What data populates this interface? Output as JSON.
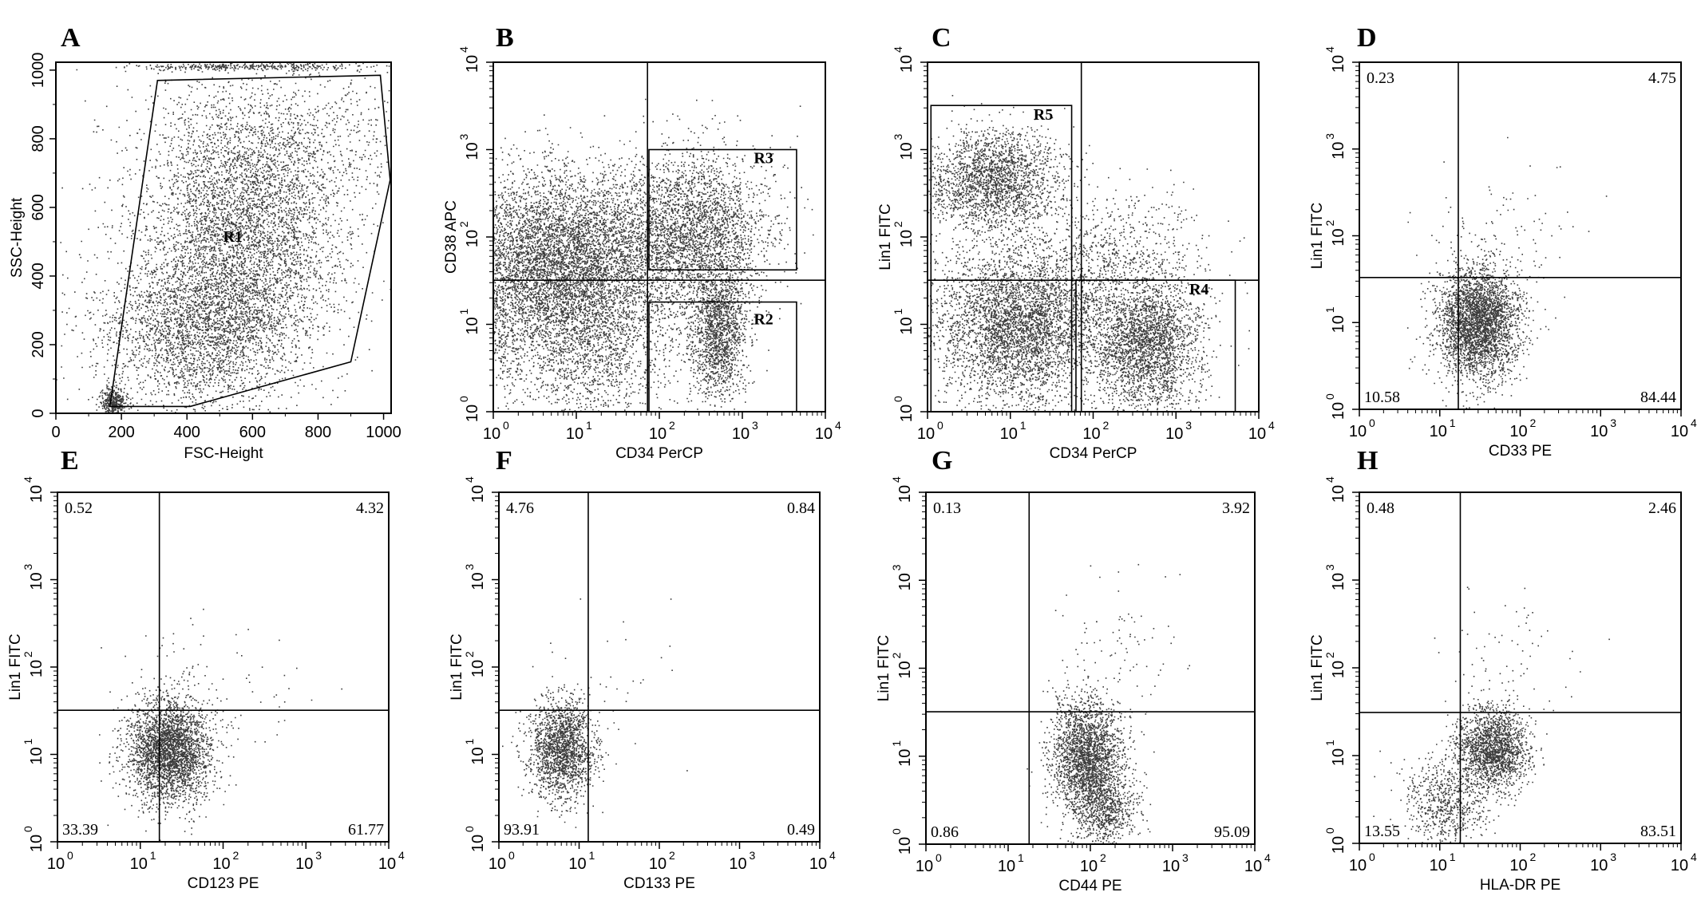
{
  "chart_data": [
    {
      "panel": "A",
      "type": "scatter",
      "xlabel": "FSC-Height",
      "ylabel": "SSC-Height",
      "xscale": "linear",
      "yscale": "linear",
      "xlim": [
        0,
        1023
      ],
      "ylim": [
        0,
        1023
      ],
      "xticks": [
        "0",
        "200",
        "400",
        "600",
        "800",
        "1000"
      ],
      "yticks": [
        "0",
        "200",
        "400",
        "600",
        "800",
        "1000"
      ],
      "gates": [
        {
          "name": "R1",
          "shape": "polygon",
          "points": [
            [
              165,
              20
            ],
            [
              310,
              970
            ],
            [
              990,
              985
            ],
            [
              1020,
              680
            ],
            [
              900,
              150
            ],
            [
              410,
              20
            ]
          ],
          "label_at": [
            540,
            500
          ]
        }
      ],
      "clusters": [
        {
          "cx": 560,
          "cy": 480,
          "sx": 150,
          "sy": 180,
          "n": 4200
        },
        {
          "cx": 420,
          "cy": 230,
          "sx": 150,
          "sy": 110,
          "n": 2200
        },
        {
          "cx": 640,
          "cy": 760,
          "sx": 200,
          "sy": 140,
          "n": 1400
        },
        {
          "cx": 175,
          "cy": 35,
          "sx": 18,
          "sy": 22,
          "n": 400
        },
        {
          "cx": 600,
          "cy": 1012,
          "sx": 200,
          "sy": 5,
          "n": 350
        }
      ]
    },
    {
      "panel": "B",
      "type": "scatter",
      "xlabel": "CD34 PerCP",
      "ylabel": "CD38 APC",
      "xscale": "log",
      "yscale": "log",
      "xlim": [
        1,
        10000
      ],
      "ylim": [
        1,
        10000
      ],
      "quadrant": [
        72,
        32
      ],
      "gates": [
        {
          "name": "R3",
          "shape": "rect",
          "x0": 75,
          "x1": 4500,
          "y0": 42,
          "y1": 1000,
          "label_at": [
            1800,
            700
          ]
        },
        {
          "name": "R2",
          "shape": "rect",
          "x0": 75,
          "x1": 4500,
          "y0": 1.0,
          "y1": 18,
          "label_at": [
            1800,
            10
          ]
        }
      ],
      "clusters": [
        {
          "cx": 8,
          "cy": 60,
          "sx": 0.7,
          "sy": 0.5,
          "n": 5500
        },
        {
          "cx": 2.5,
          "cy": 15,
          "sx": 0.6,
          "sy": 0.6,
          "n": 1800
        },
        {
          "cx": 20,
          "cy": 5,
          "sx": 0.4,
          "sy": 0.5,
          "n": 1000
        },
        {
          "cx": 280,
          "cy": 120,
          "sx": 0.45,
          "sy": 0.45,
          "n": 2600
        },
        {
          "cx": 500,
          "cy": 8,
          "sx": 0.18,
          "sy": 0.4,
          "n": 1600
        }
      ]
    },
    {
      "panel": "C",
      "type": "scatter",
      "xlabel": "CD34 PerCP",
      "ylabel": "Lin1 FITC",
      "xscale": "log",
      "yscale": "log",
      "xlim": [
        1,
        10000
      ],
      "ylim": [
        1,
        10000
      ],
      "quadrant": [
        72,
        32
      ],
      "gates": [
        {
          "name": "R5",
          "shape": "rect",
          "x0": 1.1,
          "x1": 55,
          "y0": 1.0,
          "y1": 3200,
          "label_at": [
            25,
            2200
          ]
        },
        {
          "name": "R4",
          "shape": "rect",
          "x0": 62,
          "x1": 5200,
          "y0": 1.0,
          "y1": 32,
          "label_at": [
            1900,
            22
          ]
        }
      ],
      "clusters": [
        {
          "cx": 6,
          "cy": 450,
          "sx": 0.4,
          "sy": 0.3,
          "n": 2200
        },
        {
          "cx": 12,
          "cy": 10,
          "sx": 0.5,
          "sy": 0.45,
          "n": 4200
        },
        {
          "cx": 450,
          "cy": 6,
          "sx": 0.32,
          "sy": 0.38,
          "n": 2600
        },
        {
          "cx": 200,
          "cy": 60,
          "sx": 0.5,
          "sy": 0.35,
          "n": 700
        }
      ]
    },
    {
      "panel": "D",
      "type": "scatter",
      "xlabel": "CD33 PE",
      "ylabel": "Lin1 FITC",
      "xscale": "log",
      "yscale": "log",
      "xlim": [
        1,
        10000
      ],
      "ylim": [
        1,
        10000
      ],
      "quadrant": [
        17,
        33
      ],
      "quadrant_values": {
        "ul": "0.23",
        "ur": "4.75",
        "ll": "10.58",
        "lr": "84.44"
      },
      "clusters": [
        {
          "cx": 30,
          "cy": 10,
          "sx": 0.25,
          "sy": 0.32,
          "n": 3200
        },
        {
          "cx": 60,
          "cy": 80,
          "sx": 0.45,
          "sy": 0.4,
          "n": 110
        }
      ]
    },
    {
      "panel": "E",
      "type": "scatter",
      "xlabel": "CD123 PE",
      "ylabel": "Lin1 FITC",
      "xscale": "log",
      "yscale": "log",
      "xlim": [
        1,
        10000
      ],
      "ylim": [
        1,
        10000
      ],
      "quadrant": [
        17,
        32
      ],
      "quadrant_values": {
        "ul": "0.52",
        "ur": "4.32",
        "ll": "33.39",
        "lr": "61.77"
      },
      "clusters": [
        {
          "cx": 22,
          "cy": 11,
          "sx": 0.25,
          "sy": 0.3,
          "n": 3000
        },
        {
          "cx": 60,
          "cy": 60,
          "sx": 0.5,
          "sy": 0.4,
          "n": 90
        }
      ]
    },
    {
      "panel": "F",
      "type": "scatter",
      "xlabel": "CD133 PE",
      "ylabel": "Lin1 FITC",
      "xscale": "log",
      "yscale": "log",
      "xlim": [
        1,
        10000
      ],
      "ylim": [
        1,
        10000
      ],
      "quadrant": [
        13,
        32
      ],
      "quadrant_values": {
        "ul": "4.76",
        "ur": "0.84",
        "ll": "93.91",
        "lr": "0.49"
      },
      "clusters": [
        {
          "cx": 6,
          "cy": 12,
          "sx": 0.2,
          "sy": 0.28,
          "n": 1800
        },
        {
          "cx": 30,
          "cy": 100,
          "sx": 0.5,
          "sy": 0.5,
          "n": 25
        }
      ]
    },
    {
      "panel": "G",
      "type": "scatter",
      "xlabel": "CD44 PE",
      "ylabel": "Lin1 FITC",
      "xscale": "log",
      "yscale": "log",
      "xlim": [
        1,
        10000
      ],
      "ylim": [
        1,
        10000
      ],
      "quadrant": [
        18,
        32
      ],
      "quadrant_values": {
        "ul": "0.13",
        "ur": "3.92",
        "ll": "0.86",
        "lr": "95.09"
      },
      "clusters": [
        {
          "cx": 90,
          "cy": 10,
          "sx": 0.22,
          "sy": 0.32,
          "n": 2300
        },
        {
          "cx": 150,
          "cy": 2.5,
          "sx": 0.2,
          "sy": 0.2,
          "n": 700
        },
        {
          "cx": 200,
          "cy": 150,
          "sx": 0.4,
          "sy": 0.4,
          "n": 90
        }
      ]
    },
    {
      "panel": "H",
      "type": "scatter",
      "xlabel": "HLA-DR PE",
      "ylabel": "Lin1 FITC",
      "xscale": "log",
      "yscale": "log",
      "xlim": [
        1,
        10000
      ],
      "ylim": [
        1,
        10000
      ],
      "quadrant": [
        18,
        31
      ],
      "quadrant_values": {
        "ul": "0.48",
        "ur": "2.46",
        "ll": "13.55",
        "lr": "83.51"
      },
      "clusters": [
        {
          "cx": 45,
          "cy": 12,
          "sx": 0.22,
          "sy": 0.22,
          "n": 1800
        },
        {
          "cx": 12,
          "cy": 3,
          "sx": 0.28,
          "sy": 0.25,
          "n": 700
        },
        {
          "cx": 60,
          "cy": 100,
          "sx": 0.4,
          "sy": 0.45,
          "n": 80
        }
      ]
    }
  ]
}
